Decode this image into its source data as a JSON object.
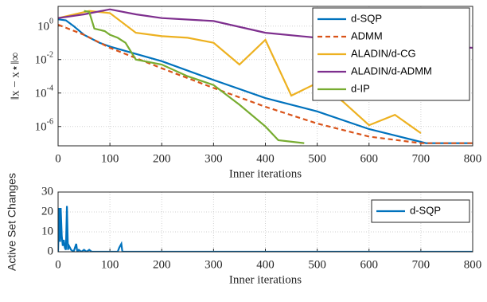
{
  "chart_data": [
    {
      "type": "line",
      "ylabel": "‖x − x⋆‖∞",
      "xlabel": "Inner iterations",
      "log_y": true,
      "grid": true,
      "legend": "upper right",
      "xlim": [
        0,
        800
      ],
      "xticks": [
        0,
        100,
        200,
        300,
        400,
        500,
        600,
        700,
        800
      ],
      "ylim": [
        7e-08,
        15
      ],
      "yticks": [
        {
          "value": 1e-06,
          "label": "10^-6"
        },
        {
          "value": 0.0001,
          "label": "10^-4"
        },
        {
          "value": 0.01,
          "label": "10^-2"
        },
        {
          "value": 1,
          "label": "10^0"
        }
      ],
      "series": [
        {
          "name": "d-SQP",
          "color": "#0072bd",
          "dash": false,
          "x": [
            0,
            5,
            15,
            30,
            50,
            80,
            100,
            200,
            300,
            400,
            500,
            600,
            700,
            710,
            800
          ],
          "values": [
            2.5,
            2.4,
            2.2,
            1,
            0.3,
            0.1,
            0.06,
            0.008,
            0.0006,
            5e-05,
            8e-06,
            7e-07,
            1.2e-07,
            1e-07,
            1e-07
          ]
        },
        {
          "name": "ADMM",
          "color": "#d95319",
          "dash": true,
          "x": [
            0,
            50,
            100,
            200,
            300,
            400,
            500,
            600,
            700,
            800
          ],
          "values": [
            1.2,
            0.3,
            0.05,
            0.003,
            0.0002,
            1.5e-05,
            1.5e-06,
            2.5e-07,
            1e-07,
            1e-07
          ]
        },
        {
          "name": "ALADIN/d-CG",
          "color": "#edb120",
          "dash": false,
          "x": [
            0,
            60,
            100,
            150,
            200,
            250,
            300,
            350,
            400,
            450,
            500,
            550,
            600,
            650,
            700
          ],
          "values": [
            3,
            8,
            6,
            0.4,
            0.25,
            0.2,
            0.1,
            0.005,
            0.15,
            7e-05,
            0.0004,
            3e-05,
            1.2e-06,
            5e-06,
            4e-07
          ]
        },
        {
          "name": "ALADIN/d-ADMM",
          "color": "#7e2f8e",
          "dash": false,
          "x": [
            0,
            50,
            100,
            150,
            200,
            300,
            400,
            500,
            600,
            700,
            800
          ],
          "values": [
            3,
            5,
            10,
            5,
            3,
            2,
            0.4,
            0.2,
            0.1,
            0.07,
            0.05
          ]
        },
        {
          "name": "d-IP",
          "color": "#77ac30",
          "dash": false,
          "x": [
            50,
            60,
            70,
            90,
            100,
            115,
            130,
            150,
            200,
            250,
            300,
            350,
            400,
            425,
            475
          ],
          "values": [
            8,
            7,
            0.7,
            0.5,
            0.3,
            0.2,
            0.1,
            0.01,
            0.005,
            0.001,
            0.0003,
            2e-05,
            1e-06,
            1.5e-07,
            1e-07
          ]
        }
      ]
    },
    {
      "type": "line",
      "ylabel": "Active Set Changes",
      "xlabel": "Inner iterations",
      "log_y": false,
      "grid": true,
      "legend": "upper right",
      "xlim": [
        0,
        800
      ],
      "xticks": [
        0,
        100,
        200,
        300,
        400,
        500,
        600,
        700,
        800
      ],
      "ylim": [
        0,
        30
      ],
      "yticks": [
        0,
        10,
        20,
        30
      ],
      "series": [
        {
          "name": "d-SQP",
          "color": "#0072bd",
          "dash": false,
          "x": [
            0,
            2,
            4,
            5,
            7,
            9,
            11,
            13,
            15,
            17,
            19,
            21,
            25,
            30,
            35,
            37,
            40,
            45,
            50,
            55,
            60,
            65,
            115,
            118,
            122,
            124,
            800
          ],
          "values": [
            0,
            22,
            5,
            22,
            8,
            3,
            6,
            2,
            1,
            23,
            1,
            3,
            1,
            0,
            4,
            0,
            1,
            0,
            1,
            0,
            1,
            0,
            0,
            2,
            4,
            0,
            0
          ]
        }
      ]
    }
  ]
}
